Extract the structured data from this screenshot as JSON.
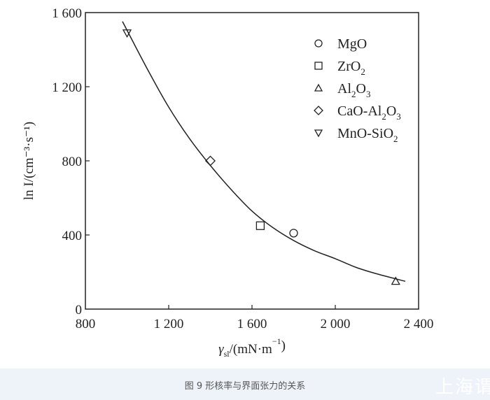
{
  "chart_data": {
    "type": "scatter",
    "xlabel": "γsl/(mN·m⁻¹)",
    "xlabel_parts": {
      "main": "γ",
      "sub": "sl",
      "rest": "/(mN·m",
      "sup": "−1",
      "end": ")"
    },
    "ylabel": "ln I/(cm⁻³·s⁻¹)",
    "xlim": [
      800,
      2400
    ],
    "ylim": [
      0,
      1600
    ],
    "x_ticks": [
      800,
      1200,
      1600,
      2000,
      2400
    ],
    "x_tick_labels": [
      "800",
      "1 200",
      "1 600",
      "2 000",
      "2 400"
    ],
    "y_ticks": [
      0,
      400,
      800,
      1200,
      1600
    ],
    "y_tick_labels": [
      "0",
      "400",
      "800",
      "1 200",
      "1 600"
    ],
    "grid": false,
    "legend_position": "top-right",
    "series": [
      {
        "name": "MgO",
        "marker": "circle",
        "x": [
          1800
        ],
        "y": [
          410
        ]
      },
      {
        "name": "ZrO2",
        "marker": "square",
        "x": [
          1640
        ],
        "y": [
          450
        ]
      },
      {
        "name": "Al2O3",
        "marker": "triangle-up",
        "x": [
          2290
        ],
        "y": [
          150
        ]
      },
      {
        "name": "CaO-Al2O3",
        "marker": "diamond",
        "x": [
          1400
        ],
        "y": [
          800
        ]
      },
      {
        "name": "MnO-SiO2",
        "marker": "triangle-down",
        "x": [
          1000
        ],
        "y": [
          1490
        ]
      }
    ],
    "legend_labels": [
      {
        "parts": [
          [
            "MgO",
            ""
          ]
        ]
      },
      {
        "parts": [
          [
            "ZrO",
            ""
          ],
          [
            "2",
            "sub"
          ]
        ]
      },
      {
        "parts": [
          [
            "Al",
            ""
          ],
          [
            "2",
            "sub"
          ],
          [
            "O",
            ""
          ],
          [
            "3",
            "sub"
          ]
        ]
      },
      {
        "parts": [
          [
            "CaO-Al",
            ""
          ],
          [
            "2",
            "sub"
          ],
          [
            "O",
            ""
          ],
          [
            "3",
            "sub"
          ]
        ]
      },
      {
        "parts": [
          [
            "MnO-SiO",
            ""
          ],
          [
            "2",
            "sub"
          ]
        ]
      }
    ],
    "fit_curve": {
      "x": [
        978,
        1100,
        1200,
        1300,
        1400,
        1500,
        1600,
        1700,
        1800,
        1900,
        2000,
        2100,
        2200,
        2336
      ],
      "y": [
        1552,
        1290,
        1090,
        920,
        775,
        645,
        529,
        440,
        370,
        315,
        272,
        225,
        190,
        150
      ]
    },
    "colors": {
      "ink": "#222222"
    }
  },
  "caption": "图 9 形核率与界面张力的关系",
  "watermark": "上海谓"
}
